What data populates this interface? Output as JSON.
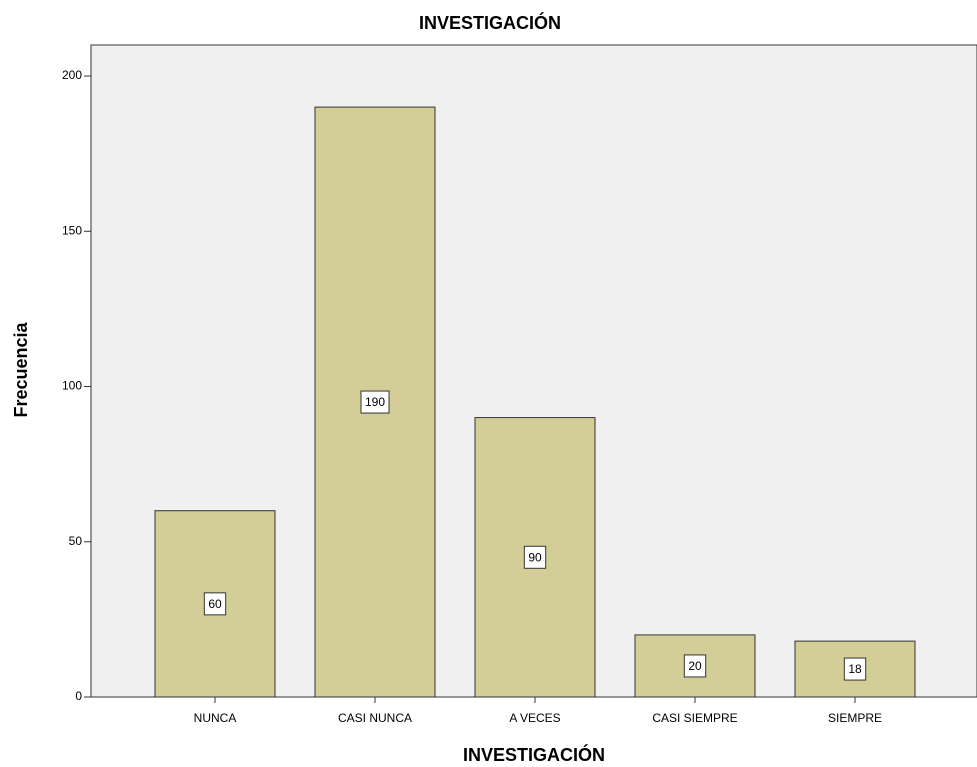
{
  "chart_data": {
    "type": "bar",
    "title": "INVESTIGACIÓN",
    "x_label": "INVESTIGACIÓN",
    "y_label": "Frecuencia",
    "categories": [
      "NUNCA",
      "CASI NUNCA",
      "A VECES",
      "CASI SIEMPRE",
      "SIEMPRE"
    ],
    "values": [
      60,
      190,
      90,
      20,
      18
    ],
    "color": "#d3ce97",
    "ylim": [
      0,
      210
    ],
    "yticks": [
      0,
      50,
      100,
      150,
      200
    ],
    "grid": false
  }
}
